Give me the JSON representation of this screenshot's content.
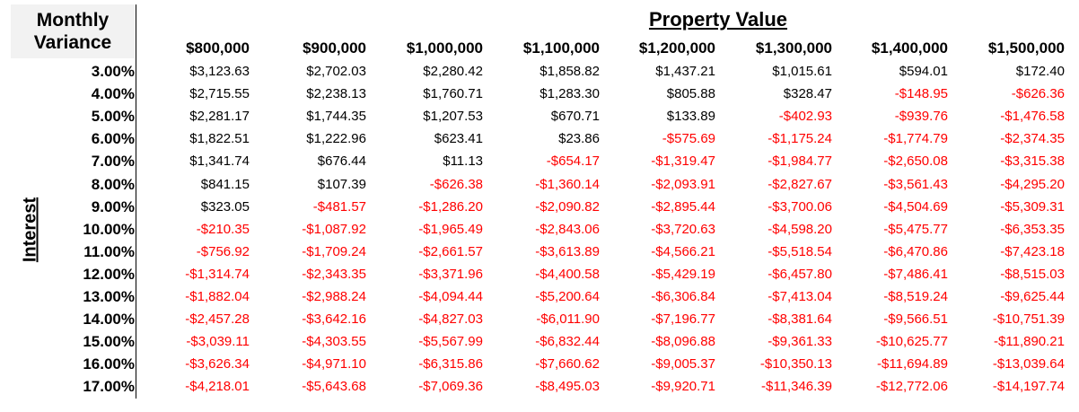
{
  "title_line1": "Monthly",
  "title_line2": "Variance",
  "column_group_heading": "Property Value",
  "row_group_heading": "Interest",
  "columns": [
    "$800,000",
    "$900,000",
    "$1,000,000",
    "$1,100,000",
    "$1,200,000",
    "$1,300,000",
    "$1,400,000",
    "$1,500,000"
  ],
  "rows": [
    {
      "rate": "3.00%",
      "values": [
        "$3,123.63",
        "$2,702.03",
        "$2,280.42",
        "$1,858.82",
        "$1,437.21",
        "$1,015.61",
        "$594.01",
        "$172.40"
      ]
    },
    {
      "rate": "4.00%",
      "values": [
        "$2,715.55",
        "$2,238.13",
        "$1,760.71",
        "$1,283.30",
        "$805.88",
        "$328.47",
        "-$148.95",
        "-$626.36"
      ]
    },
    {
      "rate": "5.00%",
      "values": [
        "$2,281.17",
        "$1,744.35",
        "$1,207.53",
        "$670.71",
        "$133.89",
        "-$402.93",
        "-$939.76",
        "-$1,476.58"
      ]
    },
    {
      "rate": "6.00%",
      "values": [
        "$1,822.51",
        "$1,222.96",
        "$623.41",
        "$23.86",
        "-$575.69",
        "-$1,175.24",
        "-$1,774.79",
        "-$2,374.35"
      ]
    },
    {
      "rate": "7.00%",
      "values": [
        "$1,341.74",
        "$676.44",
        "$11.13",
        "-$654.17",
        "-$1,319.47",
        "-$1,984.77",
        "-$2,650.08",
        "-$3,315.38"
      ]
    },
    {
      "rate": "8.00%",
      "values": [
        "$841.15",
        "$107.39",
        "-$626.38",
        "-$1,360.14",
        "-$2,093.91",
        "-$2,827.67",
        "-$3,561.43",
        "-$4,295.20"
      ]
    },
    {
      "rate": "9.00%",
      "values": [
        "$323.05",
        "-$481.57",
        "-$1,286.20",
        "-$2,090.82",
        "-$2,895.44",
        "-$3,700.06",
        "-$4,504.69",
        "-$5,309.31"
      ]
    },
    {
      "rate": "10.00%",
      "values": [
        "-$210.35",
        "-$1,087.92",
        "-$1,965.49",
        "-$2,843.06",
        "-$3,720.63",
        "-$4,598.20",
        "-$5,475.77",
        "-$6,353.35"
      ]
    },
    {
      "rate": "11.00%",
      "values": [
        "-$756.92",
        "-$1,709.24",
        "-$2,661.57",
        "-$3,613.89",
        "-$4,566.21",
        "-$5,518.54",
        "-$6,470.86",
        "-$7,423.18"
      ]
    },
    {
      "rate": "12.00%",
      "values": [
        "-$1,314.74",
        "-$2,343.35",
        "-$3,371.96",
        "-$4,400.58",
        "-$5,429.19",
        "-$6,457.80",
        "-$7,486.41",
        "-$8,515.03"
      ]
    },
    {
      "rate": "13.00%",
      "values": [
        "-$1,882.04",
        "-$2,988.24",
        "-$4,094.44",
        "-$5,200.64",
        "-$6,306.84",
        "-$7,413.04",
        "-$8,519.24",
        "-$9,625.44"
      ]
    },
    {
      "rate": "14.00%",
      "values": [
        "-$2,457.28",
        "-$3,642.16",
        "-$4,827.03",
        "-$6,011.90",
        "-$7,196.77",
        "-$8,381.64",
        "-$9,566.51",
        "-$10,751.39"
      ]
    },
    {
      "rate": "15.00%",
      "values": [
        "-$3,039.11",
        "-$4,303.55",
        "-$5,567.99",
        "-$6,832.44",
        "-$8,096.88",
        "-$9,361.33",
        "-$10,625.77",
        "-$11,890.21"
      ]
    },
    {
      "rate": "16.00%",
      "values": [
        "-$3,626.34",
        "-$4,971.10",
        "-$6,315.86",
        "-$7,660.62",
        "-$9,005.37",
        "-$10,350.13",
        "-$11,694.89",
        "-$13,039.64"
      ]
    },
    {
      "rate": "17.00%",
      "values": [
        "-$4,218.01",
        "-$5,643.68",
        "-$7,069.36",
        "-$8,495.03",
        "-$9,920.71",
        "-$11,346.39",
        "-$12,772.06",
        "-$14,197.74"
      ]
    }
  ],
  "colors": {
    "positive": "#000000",
    "negative": "#ff0000",
    "title_background": "#f2f2f2"
  }
}
